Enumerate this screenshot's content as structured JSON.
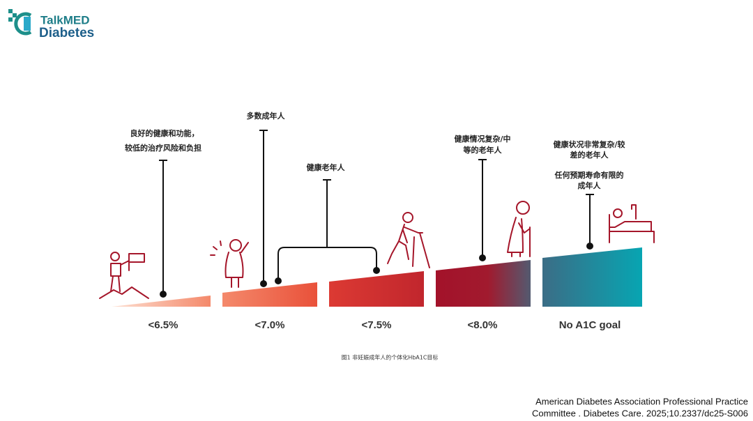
{
  "header": {
    "logo_top": "TalkMED",
    "logo_bottom": "Diabetes"
  },
  "segments": [
    {
      "label": "<6.5%"
    },
    {
      "label": "<7.0%"
    },
    {
      "label": "<7.5%"
    },
    {
      "label": "<8.0%"
    },
    {
      "label": "No A1C goal"
    }
  ],
  "annotations": [
    {
      "lines": [
        "良好的健康和功能，",
        "较低的治疗风险和负担"
      ]
    },
    {
      "lines": [
        "多数成年人"
      ]
    },
    {
      "lines": [
        "健康老年人"
      ]
    },
    {
      "lines": [
        "健康情况复杂/中",
        "等的老年人"
      ]
    },
    {
      "lines": [
        "健康状况非常复杂/较",
        "差的老年人",
        "任何预期寿命有限的",
        "成年人"
      ]
    }
  ],
  "caption": "图1 非妊娠成年人的个体化HbA1C目标",
  "citation": [
    "American Diabetes Association Professional Practice",
    "Committee . Diabetes Care. 2025;10.2337/dc25-S006"
  ]
}
